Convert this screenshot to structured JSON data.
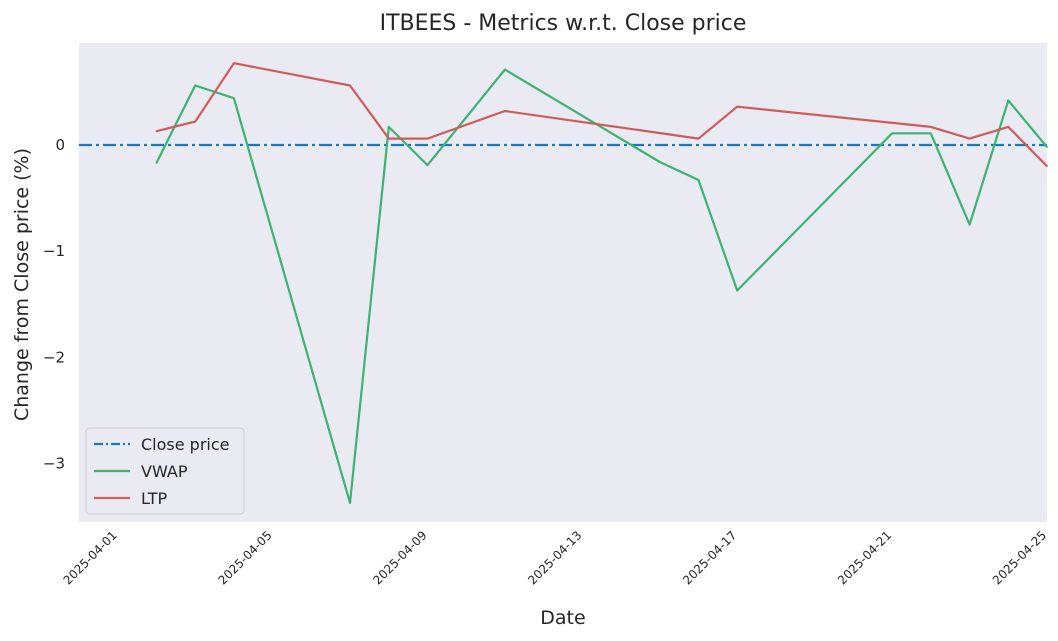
{
  "chart_data": {
    "type": "line",
    "title": "ITBEES - Metrics w.r.t. Close price",
    "xlabel": "Date",
    "ylabel": "Change from Close price (%)",
    "xlim": [
      "2025-03-31",
      "2025-04-25"
    ],
    "ylim": [
      -3.55,
      0.96
    ],
    "x_ticks": [
      "2025-04-01",
      "2025-04-05",
      "2025-04-09",
      "2025-04-13",
      "2025-04-17",
      "2025-04-21",
      "2025-04-25"
    ],
    "y_ticks": [
      0,
      -1,
      -2,
      -3
    ],
    "y_tick_labels": [
      "0",
      "−1",
      "−2",
      "−3"
    ],
    "grid": false,
    "legend_position": "lower-left",
    "background": "#eaeaf2",
    "series": [
      {
        "name": "Close price",
        "color": "#1f77b4",
        "style": "dashdot",
        "points": [
          {
            "x": "2025-03-31",
            "y": 0
          },
          {
            "x": "2025-04-25",
            "y": 0
          }
        ]
      },
      {
        "name": "VWAP",
        "color": "#3cb371",
        "style": "solid",
        "points": [
          {
            "x": "2025-04-02",
            "y": -0.17
          },
          {
            "x": "2025-04-03",
            "y": 0.56
          },
          {
            "x": "2025-04-04",
            "y": 0.44
          },
          {
            "x": "2025-04-07",
            "y": -3.37
          },
          {
            "x": "2025-04-08",
            "y": 0.17
          },
          {
            "x": "2025-04-09",
            "y": -0.19
          },
          {
            "x": "2025-04-11",
            "y": 0.71
          },
          {
            "x": "2025-04-15",
            "y": -0.16
          },
          {
            "x": "2025-04-16",
            "y": -0.33
          },
          {
            "x": "2025-04-17",
            "y": -1.37
          },
          {
            "x": "2025-04-21",
            "y": 0.11
          },
          {
            "x": "2025-04-22",
            "y": 0.11
          },
          {
            "x": "2025-04-23",
            "y": -0.75
          },
          {
            "x": "2025-04-24",
            "y": 0.42
          },
          {
            "x": "2025-04-25",
            "y": -0.02
          }
        ]
      },
      {
        "name": "LTP",
        "color": "#cd5c5c",
        "style": "solid",
        "points": [
          {
            "x": "2025-04-02",
            "y": 0.13
          },
          {
            "x": "2025-04-03",
            "y": 0.22
          },
          {
            "x": "2025-04-04",
            "y": 0.77
          },
          {
            "x": "2025-04-07",
            "y": 0.56
          },
          {
            "x": "2025-04-08",
            "y": 0.06
          },
          {
            "x": "2025-04-09",
            "y": 0.06
          },
          {
            "x": "2025-04-11",
            "y": 0.32
          },
          {
            "x": "2025-04-16",
            "y": 0.06
          },
          {
            "x": "2025-04-17",
            "y": 0.36
          },
          {
            "x": "2025-04-22",
            "y": 0.17
          },
          {
            "x": "2025-04-23",
            "y": 0.06
          },
          {
            "x": "2025-04-24",
            "y": 0.17
          },
          {
            "x": "2025-04-25",
            "y": -0.2
          }
        ]
      }
    ]
  }
}
